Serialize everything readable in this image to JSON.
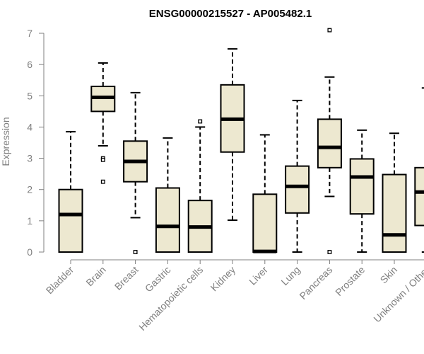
{
  "chart_data": {
    "type": "box",
    "title": "ENSG00000215527 - AP005482.1",
    "ylabel": "Expression",
    "xlabel": "",
    "ylim": [
      0,
      7
    ],
    "yticks": [
      0,
      1,
      2,
      3,
      4,
      5,
      6,
      7
    ],
    "grid": false,
    "legend": false,
    "colors": {
      "box_fill": "#ede8d0",
      "box_stroke": "#000000",
      "median": "#000000",
      "axis": "#808080",
      "text": "#808080"
    },
    "categories": [
      "Bladder",
      "Brain",
      "Breast",
      "Gastric",
      "Hematopoietic cells",
      "Kidney",
      "Liver",
      "Lung",
      "Pancreas",
      "Prostate",
      "Skin",
      "Unknown / Other"
    ],
    "boxes": [
      {
        "label": "Bladder",
        "min": 0,
        "q1": 0,
        "median": 1.2,
        "q3": 2.0,
        "max": 3.85,
        "outliers": []
      },
      {
        "label": "Brain",
        "min": 3.4,
        "q1": 4.5,
        "median": 4.95,
        "q3": 5.3,
        "max": 6.05,
        "outliers": [
          3.0,
          2.95,
          2.25
        ]
      },
      {
        "label": "Breast",
        "min": 1.1,
        "q1": 2.25,
        "median": 2.9,
        "q3": 3.55,
        "max": 5.1,
        "outliers": [
          0
        ]
      },
      {
        "label": "Gastric",
        "min": 0,
        "q1": 0,
        "median": 0.82,
        "q3": 2.05,
        "max": 3.65,
        "outliers": []
      },
      {
        "label": "Hematopoietic cells",
        "min": 0,
        "q1": 0,
        "median": 0.8,
        "q3": 1.65,
        "max": 4.0,
        "outliers": [
          4.18
        ]
      },
      {
        "label": "Kidney",
        "min": 1.02,
        "q1": 3.2,
        "median": 4.25,
        "q3": 5.35,
        "max": 6.5,
        "outliers": []
      },
      {
        "label": "Liver",
        "min": 0,
        "q1": 0,
        "median": 0.02,
        "q3": 1.85,
        "max": 3.75,
        "outliers": []
      },
      {
        "label": "Lung",
        "min": 0,
        "q1": 1.25,
        "median": 2.1,
        "q3": 2.75,
        "max": 4.85,
        "outliers": []
      },
      {
        "label": "Pancreas",
        "min": 1.78,
        "q1": 2.7,
        "median": 3.35,
        "q3": 4.25,
        "max": 5.6,
        "outliers": [
          7.1,
          0
        ]
      },
      {
        "label": "Prostate",
        "min": 0,
        "q1": 1.22,
        "median": 2.4,
        "q3": 2.98,
        "max": 3.9,
        "outliers": []
      },
      {
        "label": "Skin",
        "min": 0,
        "q1": 0,
        "median": 0.55,
        "q3": 2.48,
        "max": 3.8,
        "outliers": []
      },
      {
        "label": "Unknown / Other",
        "min": 0,
        "q1": 0.85,
        "median": 1.92,
        "q3": 2.7,
        "max": 5.25,
        "outliers": []
      }
    ]
  }
}
